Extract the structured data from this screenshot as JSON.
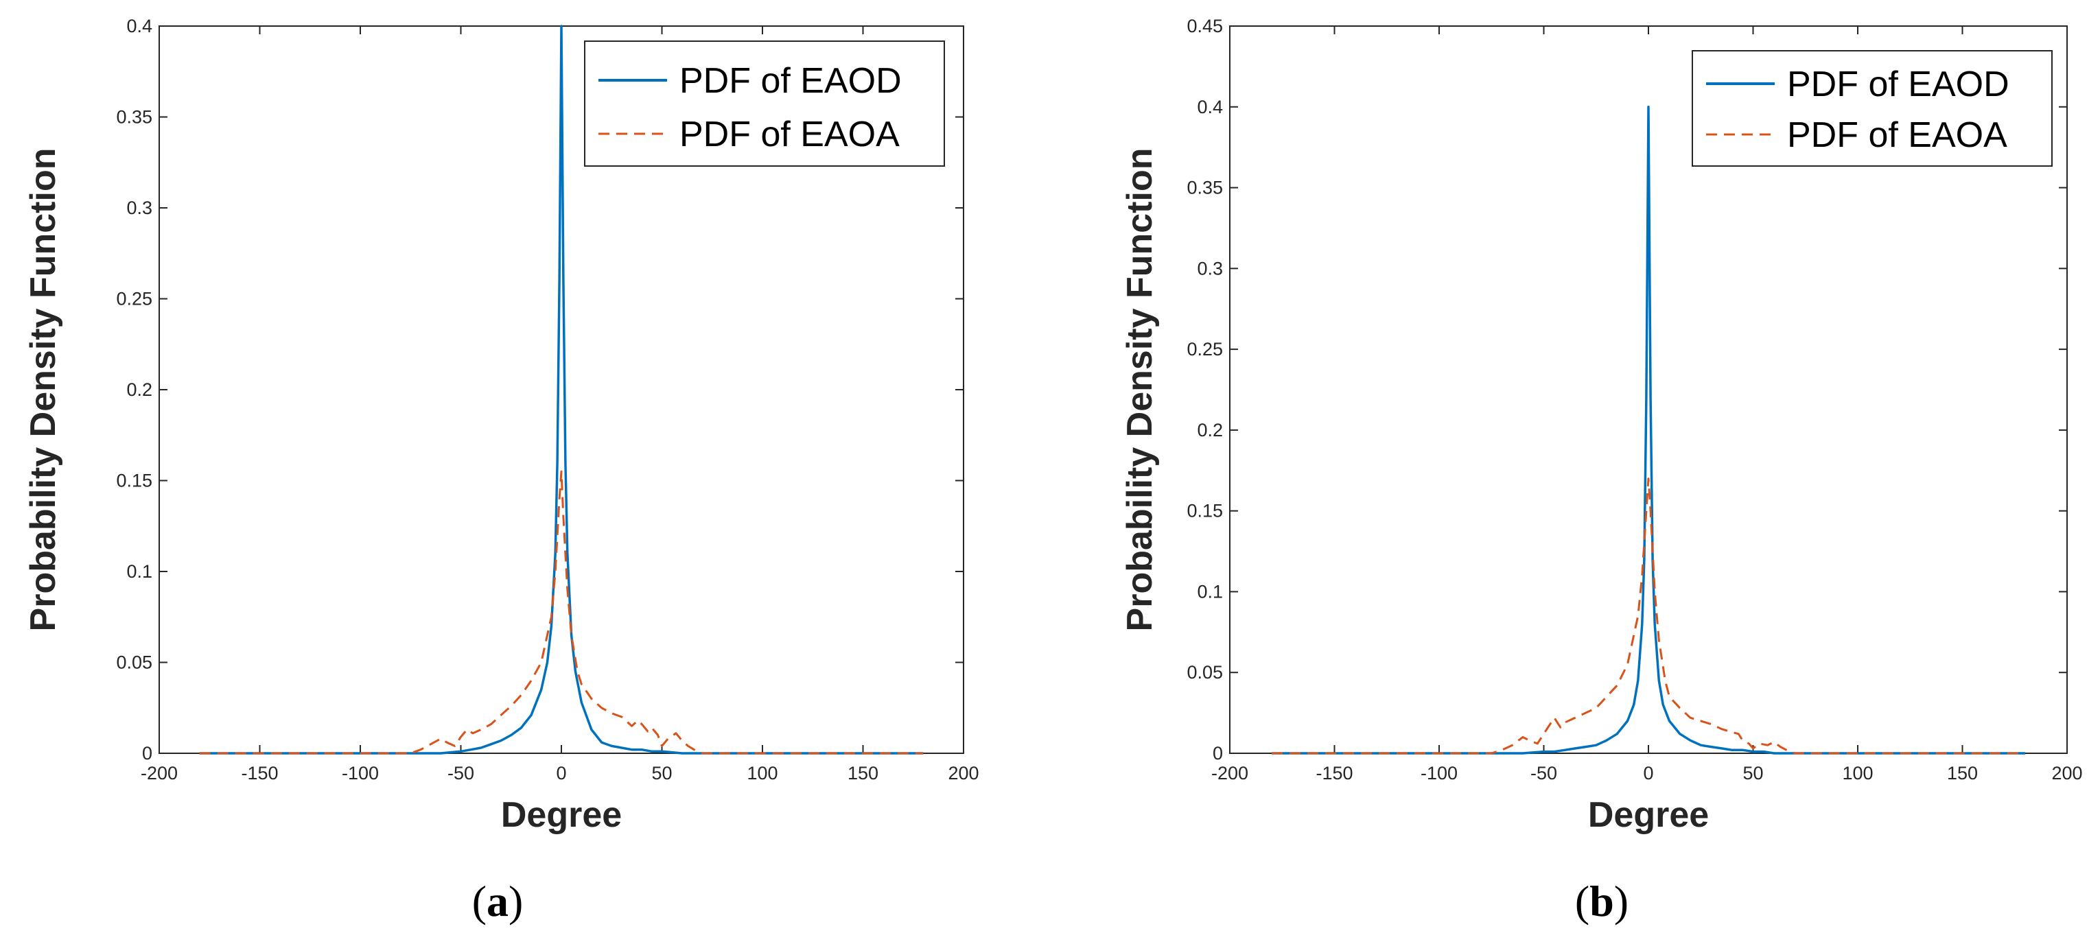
{
  "colors": {
    "eaod": "#0072BD",
    "eaoa": "#D95319",
    "axis": "#262626",
    "background": "#FFFFFF"
  },
  "chart_data": [
    {
      "type": "line",
      "panel_label": "a",
      "xlabel": "Degree",
      "ylabel": "Probability Density Function",
      "xlim": [
        -200,
        200
      ],
      "ylim": [
        0,
        0.4
      ],
      "xticks": [
        -200,
        -150,
        -100,
        -50,
        0,
        50,
        100,
        150,
        200
      ],
      "xtick_labels": [
        "-200",
        "-150",
        "-100",
        "-50",
        "0",
        "50",
        "100",
        "150",
        "200"
      ],
      "yticks": [
        0,
        0.05,
        0.1,
        0.15,
        0.2,
        0.25,
        0.3,
        0.35,
        0.4
      ],
      "ytick_labels": [
        "0",
        "0.05",
        "0.1",
        "0.15",
        "0.2",
        "0.25",
        "0.3",
        "0.35",
        "0.4"
      ],
      "grid": false,
      "legend_position": "top-right",
      "series": [
        {
          "name": "PDF of EAOD",
          "style": "solid",
          "x": [
            -180,
            -100,
            -60,
            -50,
            -45,
            -40,
            -35,
            -30,
            -25,
            -20,
            -15,
            -10,
            -7,
            -5,
            -3,
            -2,
            -1,
            0,
            1,
            2,
            3,
            5,
            7,
            10,
            15,
            20,
            25,
            30,
            35,
            40,
            45,
            50,
            60,
            100,
            180
          ],
          "y": [
            0,
            0,
            0,
            0.001,
            0.002,
            0.003,
            0.005,
            0.007,
            0.01,
            0.014,
            0.021,
            0.035,
            0.05,
            0.07,
            0.11,
            0.16,
            0.26,
            0.4,
            0.26,
            0.16,
            0.11,
            0.065,
            0.045,
            0.028,
            0.013,
            0.006,
            0.004,
            0.003,
            0.002,
            0.002,
            0.001,
            0.001,
            0,
            0,
            0
          ]
        },
        {
          "name": "PDF of EAOA",
          "style": "dashed",
          "x": [
            -180,
            -80,
            -75,
            -70,
            -65,
            -60,
            -57,
            -53,
            -50,
            -47,
            -44,
            -40,
            -35,
            -30,
            -25,
            -20,
            -15,
            -10,
            -5,
            -3,
            -1,
            0,
            1,
            3,
            5,
            8,
            10,
            15,
            20,
            25,
            30,
            35,
            38,
            40,
            43,
            45,
            48,
            50,
            53,
            57,
            60,
            63,
            66,
            70,
            75,
            180
          ],
          "y": [
            0,
            0,
            0,
            0.002,
            0.005,
            0.008,
            0.006,
            0.004,
            0.009,
            0.013,
            0.011,
            0.013,
            0.016,
            0.021,
            0.026,
            0.032,
            0.04,
            0.05,
            0.075,
            0.1,
            0.14,
            0.155,
            0.13,
            0.09,
            0.065,
            0.045,
            0.038,
            0.03,
            0.025,
            0.022,
            0.02,
            0.015,
            0.018,
            0.016,
            0.012,
            0.014,
            0.01,
            0.004,
            0.008,
            0.011,
            0.007,
            0.004,
            0.002,
            0,
            0,
            0
          ]
        }
      ]
    },
    {
      "type": "line",
      "panel_label": "b",
      "xlabel": "Degree",
      "ylabel": "Probability Density Function",
      "xlim": [
        -200,
        200
      ],
      "ylim": [
        0,
        0.45
      ],
      "xticks": [
        -200,
        -150,
        -100,
        -50,
        0,
        50,
        100,
        150,
        200
      ],
      "xtick_labels": [
        "-200",
        "-150",
        "-100",
        "-50",
        "0",
        "50",
        "100",
        "150",
        "200"
      ],
      "yticks": [
        0,
        0.05,
        0.1,
        0.15,
        0.2,
        0.25,
        0.3,
        0.35,
        0.4,
        0.45
      ],
      "ytick_labels": [
        "0",
        "0.05",
        "0.1",
        "0.15",
        "0.2",
        "0.25",
        "0.3",
        "0.35",
        "0.4",
        "0.45"
      ],
      "grid": false,
      "legend_position": "top-right",
      "series": [
        {
          "name": "PDF of EAOD",
          "style": "solid",
          "x": [
            -180,
            -100,
            -60,
            -50,
            -45,
            -40,
            -35,
            -30,
            -25,
            -20,
            -15,
            -10,
            -7,
            -5,
            -3,
            -2,
            -1,
            0,
            1,
            2,
            3,
            5,
            7,
            10,
            15,
            20,
            25,
            30,
            35,
            40,
            45,
            50,
            55,
            60,
            100,
            180
          ],
          "y": [
            0,
            0,
            0,
            0.001,
            0.001,
            0.002,
            0.003,
            0.004,
            0.005,
            0.008,
            0.012,
            0.02,
            0.03,
            0.045,
            0.08,
            0.12,
            0.22,
            0.4,
            0.22,
            0.12,
            0.08,
            0.045,
            0.03,
            0.02,
            0.012,
            0.008,
            0.005,
            0.004,
            0.003,
            0.002,
            0.002,
            0.001,
            0.001,
            0,
            0,
            0
          ]
        },
        {
          "name": "PDF of EAOA",
          "style": "dashed",
          "x": [
            -180,
            -80,
            -75,
            -70,
            -65,
            -60,
            -57,
            -53,
            -50,
            -47,
            -45,
            -42,
            -40,
            -35,
            -30,
            -25,
            -20,
            -15,
            -10,
            -5,
            -3,
            -1,
            0,
            1,
            3,
            5,
            8,
            10,
            15,
            20,
            25,
            30,
            35,
            40,
            43,
            45,
            48,
            50,
            53,
            57,
            60,
            63,
            66,
            70,
            75,
            180
          ],
          "y": [
            0,
            0,
            0,
            0.002,
            0.005,
            0.01,
            0.008,
            0.006,
            0.012,
            0.018,
            0.022,
            0.016,
            0.019,
            0.022,
            0.025,
            0.028,
            0.035,
            0.042,
            0.055,
            0.085,
            0.11,
            0.15,
            0.17,
            0.15,
            0.1,
            0.07,
            0.045,
            0.035,
            0.028,
            0.022,
            0.02,
            0.018,
            0.015,
            0.013,
            0.012,
            0.008,
            0.006,
            0.003,
            0.006,
            0.005,
            0.007,
            0.004,
            0.002,
            0,
            0,
            0
          ]
        }
      ]
    }
  ]
}
